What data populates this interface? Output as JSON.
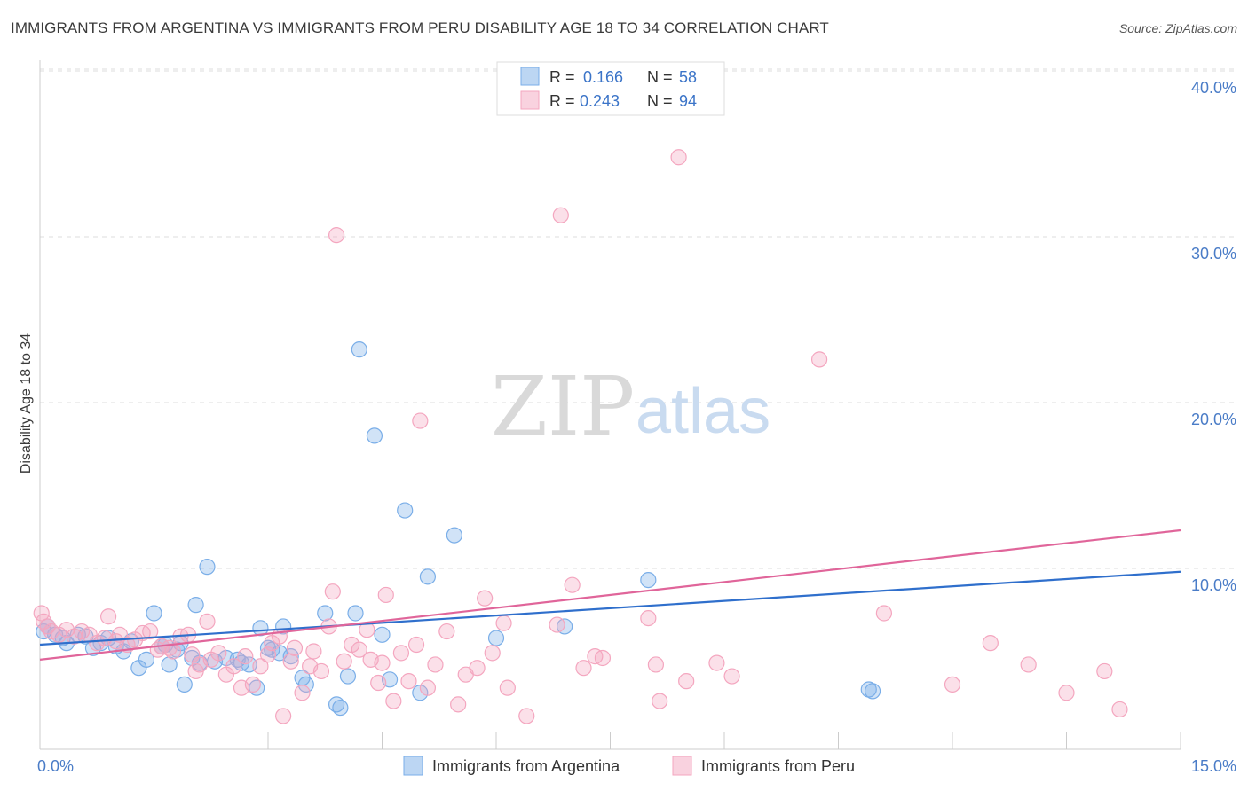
{
  "title": "IMMIGRANTS FROM ARGENTINA VS IMMIGRANTS FROM PERU DISABILITY AGE 18 TO 34 CORRELATION CHART",
  "source": "Source: ZipAtlas.com",
  "watermark": {
    "zip": "ZIP",
    "atlas": "atlas"
  },
  "legend": {
    "rows": [
      {
        "r_label": "R =",
        "r_value": "0.166",
        "n_label": "N =",
        "n_value": "58",
        "color": "#7aaee8"
      },
      {
        "r_label": "R =",
        "r_value": "0.243",
        "n_label": "N =",
        "n_value": "94",
        "color": "#f4a6bf"
      }
    ]
  },
  "bottom_legend": [
    {
      "label": "Immigrants from Argentina",
      "color": "#7aaee8"
    },
    {
      "label": "Immigrants from Peru",
      "color": "#f4a6bf"
    }
  ],
  "chart_data": {
    "type": "scatter",
    "title": "IMMIGRANTS FROM ARGENTINA VS IMMIGRANTS FROM PERU DISABILITY AGE 18 TO 34 CORRELATION CHART",
    "xlabel": "",
    "ylabel": "Disability Age 18 to 34",
    "xlim": [
      0,
      15
    ],
    "ylim": [
      0,
      40
    ],
    "x_tick_labels": [
      {
        "value": 0,
        "label": "0.0%"
      },
      {
        "value": 15,
        "label": "15.0%"
      }
    ],
    "y_tick_labels": [
      {
        "value": 10,
        "label": "10.0%"
      },
      {
        "value": 20,
        "label": "20.0%"
      },
      {
        "value": 30,
        "label": "30.0%"
      },
      {
        "value": 40,
        "label": "40.0%"
      }
    ],
    "grid": true,
    "legend_position": "top-center",
    "series": [
      {
        "name": "Immigrants from Argentina",
        "color": "#7aaee8",
        "trend": {
          "x": [
            0,
            15
          ],
          "y": [
            5.4,
            9.8
          ]
        },
        "points": [
          [
            0.05,
            6.2
          ],
          [
            0.1,
            6.5
          ],
          [
            0.2,
            6.0
          ],
          [
            0.3,
            5.8
          ],
          [
            0.35,
            5.5
          ],
          [
            0.5,
            6.0
          ],
          [
            0.6,
            5.9
          ],
          [
            0.7,
            5.2
          ],
          [
            0.8,
            5.5
          ],
          [
            0.9,
            5.8
          ],
          [
            1.0,
            5.3
          ],
          [
            1.1,
            5.0
          ],
          [
            1.2,
            5.6
          ],
          [
            1.3,
            4.0
          ],
          [
            1.4,
            4.5
          ],
          [
            1.5,
            7.3
          ],
          [
            1.6,
            5.3
          ],
          [
            1.65,
            5.4
          ],
          [
            1.7,
            4.2
          ],
          [
            1.8,
            5.1
          ],
          [
            1.85,
            5.5
          ],
          [
            1.9,
            3.0
          ],
          [
            2.0,
            4.6
          ],
          [
            2.05,
            7.8
          ],
          [
            2.1,
            4.3
          ],
          [
            2.2,
            10.1
          ],
          [
            2.3,
            4.4
          ],
          [
            2.45,
            4.6
          ],
          [
            2.6,
            4.5
          ],
          [
            2.65,
            4.3
          ],
          [
            2.75,
            4.2
          ],
          [
            2.85,
            2.8
          ],
          [
            2.9,
            6.4
          ],
          [
            3.0,
            5.2
          ],
          [
            3.05,
            5.1
          ],
          [
            3.15,
            4.9
          ],
          [
            3.2,
            6.5
          ],
          [
            3.3,
            4.7
          ],
          [
            3.45,
            3.4
          ],
          [
            3.5,
            3.0
          ],
          [
            3.75,
            7.3
          ],
          [
            3.9,
            1.8
          ],
          [
            3.95,
            1.6
          ],
          [
            4.05,
            3.5
          ],
          [
            4.15,
            7.3
          ],
          [
            4.2,
            23.2
          ],
          [
            4.4,
            18.0
          ],
          [
            4.5,
            6.0
          ],
          [
            4.6,
            3.3
          ],
          [
            4.8,
            13.5
          ],
          [
            5.0,
            2.5
          ],
          [
            5.1,
            9.5
          ],
          [
            5.45,
            12.0
          ],
          [
            6.0,
            5.8
          ],
          [
            6.9,
            6.5
          ],
          [
            8.0,
            9.3
          ],
          [
            10.9,
            2.7
          ],
          [
            10.95,
            2.6
          ]
        ]
      },
      {
        "name": "Immigrants from Peru",
        "color": "#f4a6bf",
        "trend": {
          "x": [
            0,
            15
          ],
          "y": [
            4.5,
            12.3
          ]
        },
        "points": [
          [
            0.02,
            7.3
          ],
          [
            0.05,
            6.8
          ],
          [
            0.1,
            6.5
          ],
          [
            0.15,
            6.2
          ],
          [
            0.25,
            6.0
          ],
          [
            0.35,
            6.3
          ],
          [
            0.45,
            5.9
          ],
          [
            0.55,
            6.2
          ],
          [
            0.65,
            6.0
          ],
          [
            0.75,
            5.5
          ],
          [
            0.85,
            5.8
          ],
          [
            0.9,
            7.1
          ],
          [
            1.0,
            5.6
          ],
          [
            1.05,
            6.0
          ],
          [
            1.15,
            5.4
          ],
          [
            1.25,
            5.7
          ],
          [
            1.35,
            6.1
          ],
          [
            1.45,
            6.2
          ],
          [
            1.55,
            5.1
          ],
          [
            1.6,
            5.3
          ],
          [
            1.7,
            5.2
          ],
          [
            1.75,
            5.0
          ],
          [
            1.85,
            5.9
          ],
          [
            1.95,
            6.0
          ],
          [
            2.0,
            4.8
          ],
          [
            2.05,
            3.8
          ],
          [
            2.1,
            4.2
          ],
          [
            2.2,
            6.8
          ],
          [
            2.25,
            4.5
          ],
          [
            2.35,
            4.9
          ],
          [
            2.45,
            3.6
          ],
          [
            2.55,
            4.1
          ],
          [
            2.65,
            2.8
          ],
          [
            2.7,
            4.7
          ],
          [
            2.8,
            3.0
          ],
          [
            2.9,
            4.1
          ],
          [
            3.0,
            4.8
          ],
          [
            3.05,
            5.5
          ],
          [
            3.15,
            5.9
          ],
          [
            3.2,
            1.1
          ],
          [
            3.3,
            4.4
          ],
          [
            3.35,
            5.2
          ],
          [
            3.45,
            2.5
          ],
          [
            3.55,
            4.1
          ],
          [
            3.6,
            5.0
          ],
          [
            3.7,
            3.8
          ],
          [
            3.8,
            6.5
          ],
          [
            3.85,
            8.6
          ],
          [
            3.9,
            30.1
          ],
          [
            4.0,
            4.4
          ],
          [
            4.1,
            5.4
          ],
          [
            4.2,
            5.1
          ],
          [
            4.3,
            6.3
          ],
          [
            4.35,
            4.5
          ],
          [
            4.45,
            3.1
          ],
          [
            4.5,
            4.3
          ],
          [
            4.55,
            8.4
          ],
          [
            4.65,
            2.0
          ],
          [
            4.75,
            4.9
          ],
          [
            4.85,
            3.2
          ],
          [
            4.95,
            5.4
          ],
          [
            5.0,
            18.9
          ],
          [
            5.1,
            2.8
          ],
          [
            5.2,
            4.2
          ],
          [
            5.35,
            6.2
          ],
          [
            5.5,
            1.8
          ],
          [
            5.6,
            3.6
          ],
          [
            5.75,
            4.0
          ],
          [
            5.85,
            8.2
          ],
          [
            5.95,
            4.9
          ],
          [
            6.1,
            6.7
          ],
          [
            6.15,
            2.8
          ],
          [
            6.4,
            1.1
          ],
          [
            6.8,
            6.6
          ],
          [
            6.85,
            31.3
          ],
          [
            7.0,
            9.0
          ],
          [
            7.15,
            4.0
          ],
          [
            7.3,
            4.7
          ],
          [
            7.4,
            4.6
          ],
          [
            8.0,
            7.0
          ],
          [
            8.1,
            4.2
          ],
          [
            8.15,
            2.0
          ],
          [
            8.4,
            34.8
          ],
          [
            8.5,
            3.2
          ],
          [
            8.9,
            4.3
          ],
          [
            9.1,
            3.5
          ],
          [
            10.25,
            22.6
          ],
          [
            11.1,
            7.3
          ],
          [
            12.0,
            3.0
          ],
          [
            12.5,
            5.5
          ],
          [
            13.0,
            4.2
          ],
          [
            13.5,
            2.5
          ],
          [
            14.0,
            3.8
          ],
          [
            14.2,
            1.5
          ]
        ]
      }
    ]
  }
}
